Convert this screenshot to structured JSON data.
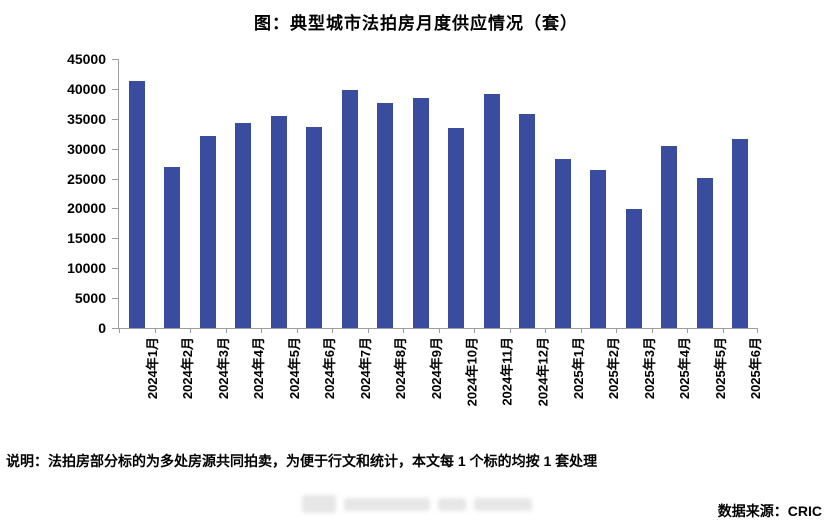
{
  "chart_data": {
    "type": "bar",
    "title": "图：典型城市法拍房月度供应情况（套）",
    "categories": [
      "2024年1月",
      "2024年2月",
      "2024年3月",
      "2024年4月",
      "2024年5月",
      "2024年6月",
      "2024年7月",
      "2024年8月",
      "2024年9月",
      "2024年10月",
      "2024年11月",
      "2024年12月",
      "2025年1月",
      "2025年2月",
      "2025年3月",
      "2025年4月",
      "2025年5月",
      "2025年6月"
    ],
    "values": [
      41400,
      26900,
      32200,
      34300,
      35400,
      33700,
      39800,
      37700,
      38400,
      33500,
      39200,
      35800,
      28300,
      26500,
      19900,
      30400,
      25100,
      31600
    ],
    "xlabel": "",
    "ylabel": "",
    "ylim": [
      0,
      45000
    ],
    "ytick_step": 5000,
    "ytick_labels": [
      "45000",
      "40000",
      "35000",
      "30000",
      "25000",
      "20000",
      "15000",
      "10000",
      "5000",
      "0"
    ],
    "grid": false,
    "legend": false,
    "bar_color": "#3A4C9E",
    "axis_color": "#9C9C9C"
  },
  "note": "说明：法拍房部分标的为多处房源共同拍卖，为便于行文和统计，本文每 1 个标的均按 1 套处理",
  "source": "数据来源：CRIC"
}
